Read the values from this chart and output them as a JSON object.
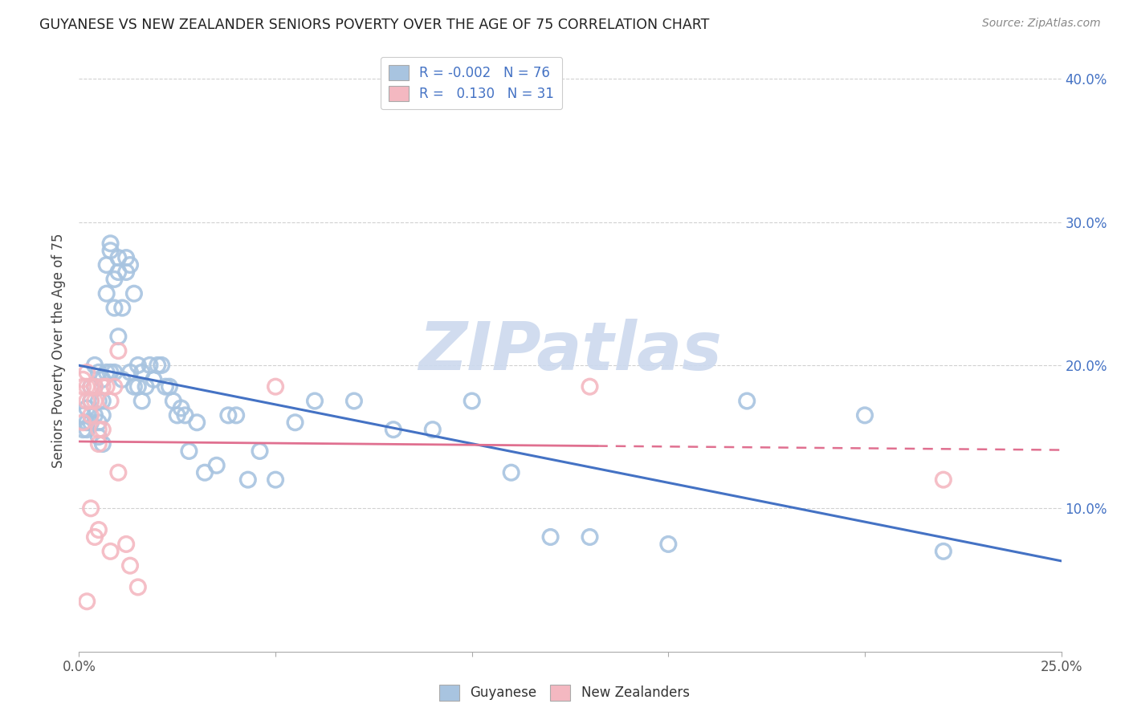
{
  "title": "GUYANESE VS NEW ZEALANDER SENIORS POVERTY OVER THE AGE OF 75 CORRELATION CHART",
  "source": "Source: ZipAtlas.com",
  "ylabel": "Seniors Poverty Over the Age of 75",
  "xlim": [
    0.0,
    0.25
  ],
  "ylim": [
    0.0,
    0.42
  ],
  "xticks": [
    0.0,
    0.05,
    0.1,
    0.15,
    0.2,
    0.25
  ],
  "yticks": [
    0.1,
    0.2,
    0.3,
    0.4
  ],
  "ytick_labels": [
    "10.0%",
    "20.0%",
    "30.0%",
    "40.0%"
  ],
  "guyanese_color": "#a8c4e0",
  "nz_color": "#f4b8c1",
  "guyanese_line_color": "#4472c4",
  "nz_line_color": "#e07090",
  "guyanese_R": -0.002,
  "guyanese_N": 76,
  "nz_R": 0.13,
  "nz_N": 31,
  "watermark_color": "#ccd9ee",
  "guyanese_x": [
    0.001,
    0.001,
    0.002,
    0.002,
    0.002,
    0.003,
    0.003,
    0.003,
    0.004,
    0.004,
    0.004,
    0.005,
    0.005,
    0.005,
    0.005,
    0.006,
    0.006,
    0.006,
    0.006,
    0.007,
    0.007,
    0.007,
    0.008,
    0.008,
    0.008,
    0.009,
    0.009,
    0.009,
    0.01,
    0.01,
    0.01,
    0.011,
    0.011,
    0.012,
    0.012,
    0.013,
    0.013,
    0.014,
    0.014,
    0.015,
    0.015,
    0.016,
    0.016,
    0.017,
    0.018,
    0.019,
    0.02,
    0.021,
    0.022,
    0.023,
    0.024,
    0.025,
    0.026,
    0.027,
    0.028,
    0.03,
    0.032,
    0.035,
    0.038,
    0.04,
    0.043,
    0.046,
    0.05,
    0.055,
    0.06,
    0.07,
    0.08,
    0.09,
    0.1,
    0.11,
    0.12,
    0.13,
    0.15,
    0.17,
    0.2,
    0.22
  ],
  "guyanese_y": [
    0.165,
    0.155,
    0.17,
    0.16,
    0.155,
    0.185,
    0.175,
    0.16,
    0.165,
    0.2,
    0.185,
    0.195,
    0.175,
    0.16,
    0.15,
    0.19,
    0.175,
    0.165,
    0.145,
    0.27,
    0.25,
    0.195,
    0.28,
    0.285,
    0.195,
    0.26,
    0.24,
    0.195,
    0.275,
    0.265,
    0.22,
    0.24,
    0.19,
    0.275,
    0.265,
    0.27,
    0.195,
    0.25,
    0.185,
    0.2,
    0.185,
    0.195,
    0.175,
    0.185,
    0.2,
    0.19,
    0.2,
    0.2,
    0.185,
    0.185,
    0.175,
    0.165,
    0.17,
    0.165,
    0.14,
    0.16,
    0.125,
    0.13,
    0.165,
    0.165,
    0.12,
    0.14,
    0.12,
    0.16,
    0.175,
    0.175,
    0.155,
    0.155,
    0.175,
    0.125,
    0.08,
    0.08,
    0.075,
    0.175,
    0.165,
    0.07
  ],
  "nz_x": [
    0.001,
    0.001,
    0.001,
    0.002,
    0.002,
    0.002,
    0.002,
    0.003,
    0.003,
    0.003,
    0.003,
    0.004,
    0.004,
    0.004,
    0.005,
    0.005,
    0.005,
    0.006,
    0.006,
    0.007,
    0.008,
    0.008,
    0.009,
    0.01,
    0.01,
    0.012,
    0.013,
    0.015,
    0.05,
    0.13,
    0.22
  ],
  "nz_y": [
    0.16,
    0.19,
    0.185,
    0.195,
    0.185,
    0.175,
    0.035,
    0.185,
    0.175,
    0.165,
    0.1,
    0.185,
    0.175,
    0.08,
    0.155,
    0.145,
    0.085,
    0.155,
    0.185,
    0.185,
    0.175,
    0.07,
    0.185,
    0.21,
    0.125,
    0.075,
    0.06,
    0.045,
    0.185,
    0.185,
    0.12
  ]
}
